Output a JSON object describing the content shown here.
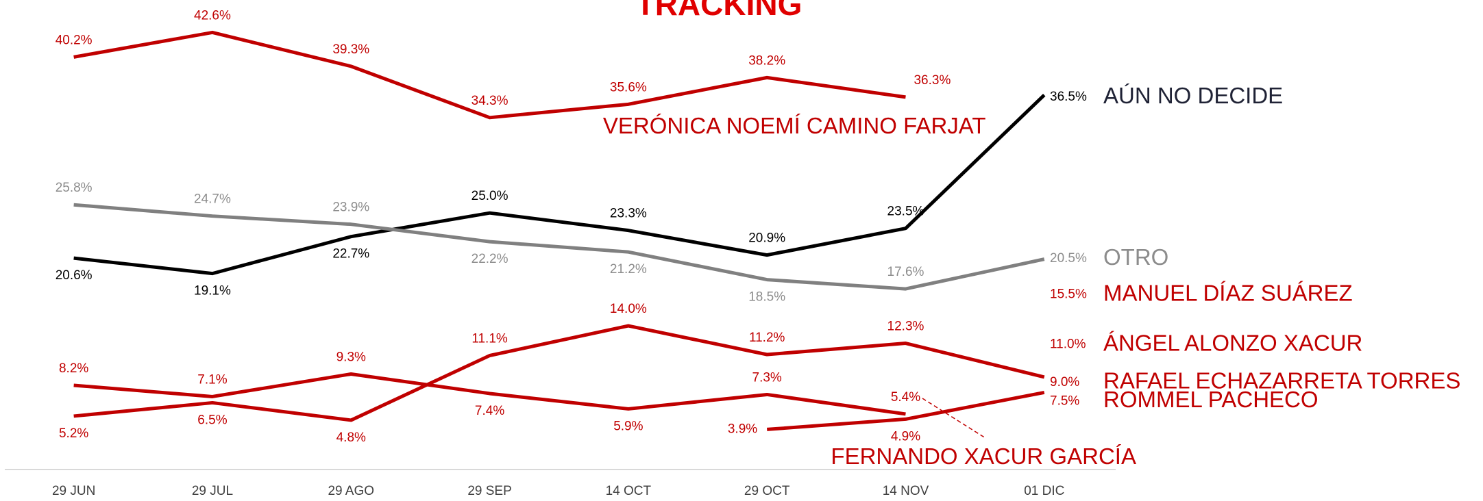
{
  "chart_data": {
    "type": "line",
    "title": "TRACKING",
    "categories": [
      "29 JUN",
      "29 JUL",
      "29 AGO",
      "29 SEP",
      "14 OCT",
      "29 OCT",
      "14 NOV",
      "01 DIC"
    ],
    "series": [
      {
        "name": "VERÓNICA NOEMÍ CAMINO FARJAT",
        "color": "#c00000",
        "values": [
          40.2,
          42.6,
          39.3,
          34.3,
          35.6,
          38.2,
          36.3,
          null
        ],
        "value_labels": [
          "40.2%",
          "42.6%",
          "39.3%",
          "34.3%",
          "35.6%",
          "38.2%",
          "36.3%",
          null
        ]
      },
      {
        "name": "AÚN NO DECIDE",
        "color": "#000000",
        "values": [
          20.6,
          19.1,
          22.7,
          25.0,
          23.3,
          20.9,
          23.5,
          36.5
        ],
        "value_labels": [
          "20.6%",
          "19.1%",
          "22.7%",
          "25.0%",
          "23.3%",
          "20.9%",
          "23.5%",
          "36.5%"
        ]
      },
      {
        "name": "OTRO",
        "color": "#808080",
        "values": [
          25.8,
          24.7,
          23.9,
          22.2,
          21.2,
          18.5,
          17.6,
          20.5
        ],
        "value_labels": [
          "25.8%",
          "24.7%",
          "23.9%",
          "22.2%",
          "21.2%",
          "18.5%",
          "17.6%",
          "20.5%"
        ]
      },
      {
        "name": "MANUEL DÍAZ SUÁREZ",
        "color": "#c00000",
        "values": [
          null,
          null,
          null,
          null,
          null,
          null,
          null,
          15.5
        ],
        "value_labels": [
          null,
          null,
          null,
          null,
          null,
          null,
          null,
          "15.5%"
        ]
      },
      {
        "name": "ÁNGEL ALONZO XACUR",
        "color": "#c00000",
        "values": [
          null,
          null,
          null,
          null,
          null,
          null,
          null,
          11.0
        ],
        "value_labels": [
          null,
          null,
          null,
          null,
          null,
          null,
          null,
          "11.0%"
        ]
      },
      {
        "name": "RAFAEL ECHAZARRETA TORRES",
        "color": "#c00000",
        "values": [
          5.2,
          6.5,
          4.8,
          11.1,
          14.0,
          11.2,
          12.3,
          9.0
        ],
        "value_labels": [
          "5.2%",
          "6.5%",
          "4.8%",
          "11.1%",
          "14.0%",
          "11.2%",
          "12.3%",
          "9.0%"
        ]
      },
      {
        "name": "FERNANDO XACUR GARCÍA",
        "color": "#c00000",
        "values": [
          8.2,
          7.1,
          9.3,
          7.4,
          5.9,
          7.3,
          5.4,
          null
        ],
        "value_labels": [
          "8.2%",
          "7.1%",
          "9.3%",
          "7.4%",
          "5.9%",
          "7.3%",
          "5.4%",
          null
        ]
      },
      {
        "name": "ROMMEL PACHECO",
        "color": "#c00000",
        "values": [
          null,
          null,
          null,
          null,
          null,
          3.9,
          4.9,
          7.5
        ],
        "value_labels": [
          null,
          null,
          null,
          null,
          null,
          "3.9%",
          "4.9%",
          "7.5%"
        ]
      }
    ]
  }
}
